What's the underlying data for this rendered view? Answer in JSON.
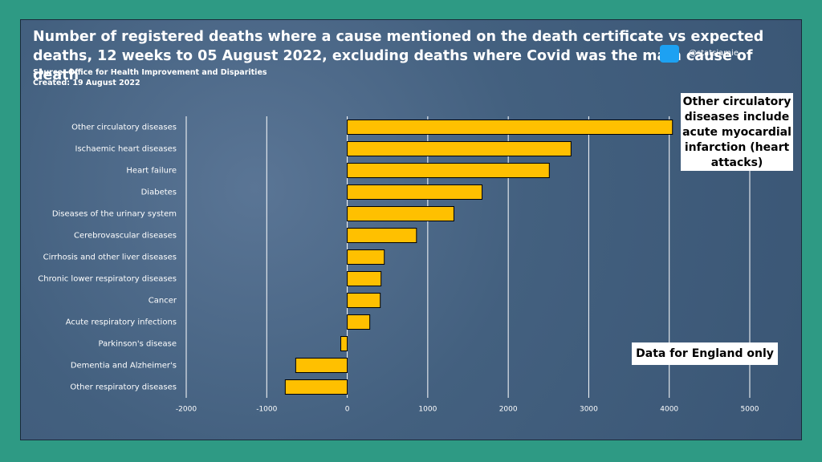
{
  "chart_data": {
    "type": "hbar",
    "title": "Number of registered deaths where a cause mentioned on the death certificate vs expected deaths, 12 weeks to 05 August 2022, excluding deaths where Covid was the main cause of death",
    "source": "Source: Office for Health Improvement and Disparities",
    "created": "Created: 19 August 2022",
    "handle": "@statsjamie",
    "annotations": [
      "Other circulatory diseases include acute myocardial infarction (heart attacks)",
      "Data for England only"
    ],
    "categories": [
      "Other circulatory diseases",
      "Ischaemic heart diseases",
      "Heart failure",
      "Diabetes",
      "Diseases of the urinary system",
      "Cerebrovascular diseases",
      "Cirrhosis and other liver diseases",
      "Chronic lower respiratory diseases",
      "Cancer",
      "Acute respiratory infections",
      "Parkinson's disease",
      "Dementia and Alzheimer's",
      "Other respiratory diseases"
    ],
    "values": [
      4040,
      2780,
      2510,
      1675,
      1325,
      860,
      460,
      420,
      410,
      280,
      -80,
      -640,
      -770
    ],
    "color": "#ffc000",
    "xlim": [
      -2000,
      5000
    ],
    "xticks": [
      -2000,
      -1000,
      0,
      1000,
      2000,
      3000,
      4000,
      5000
    ],
    "grid": true
  }
}
